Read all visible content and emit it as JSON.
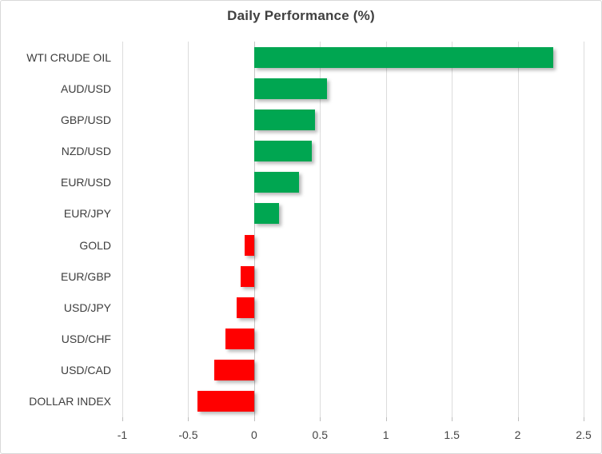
{
  "chart_data": {
    "type": "bar",
    "orientation": "horizontal",
    "title": "Daily Performance (%)",
    "categories": [
      "WTI CRUDE OIL",
      "AUD/USD",
      "GBP/USD",
      "NZD/USD",
      "EUR/USD",
      "EUR/JPY",
      "GOLD",
      "EUR/GBP",
      "USD/JPY",
      "USD/CHF",
      "USD/CAD",
      "DOLLAR INDEX"
    ],
    "values": [
      2.27,
      0.55,
      0.46,
      0.44,
      0.34,
      0.19,
      -0.07,
      -0.1,
      -0.13,
      -0.22,
      -0.3,
      -0.43
    ],
    "xlim": [
      -1,
      2.5
    ],
    "xticks": [
      -1,
      -0.5,
      0,
      0.5,
      1,
      1.5,
      2,
      2.5
    ],
    "xtick_labels": [
      "-1",
      "-0.5",
      "0",
      "0.5",
      "1",
      "1.5",
      "2",
      "2.5"
    ],
    "grid": true,
    "legend": "none",
    "bar_color_positive": "#00A651",
    "bar_color_negative": "#FF0000"
  },
  "colors": {
    "positive": "#00A651",
    "negative": "#FF0000",
    "title_text": "#404040",
    "gridline": "#DCDCDC"
  }
}
